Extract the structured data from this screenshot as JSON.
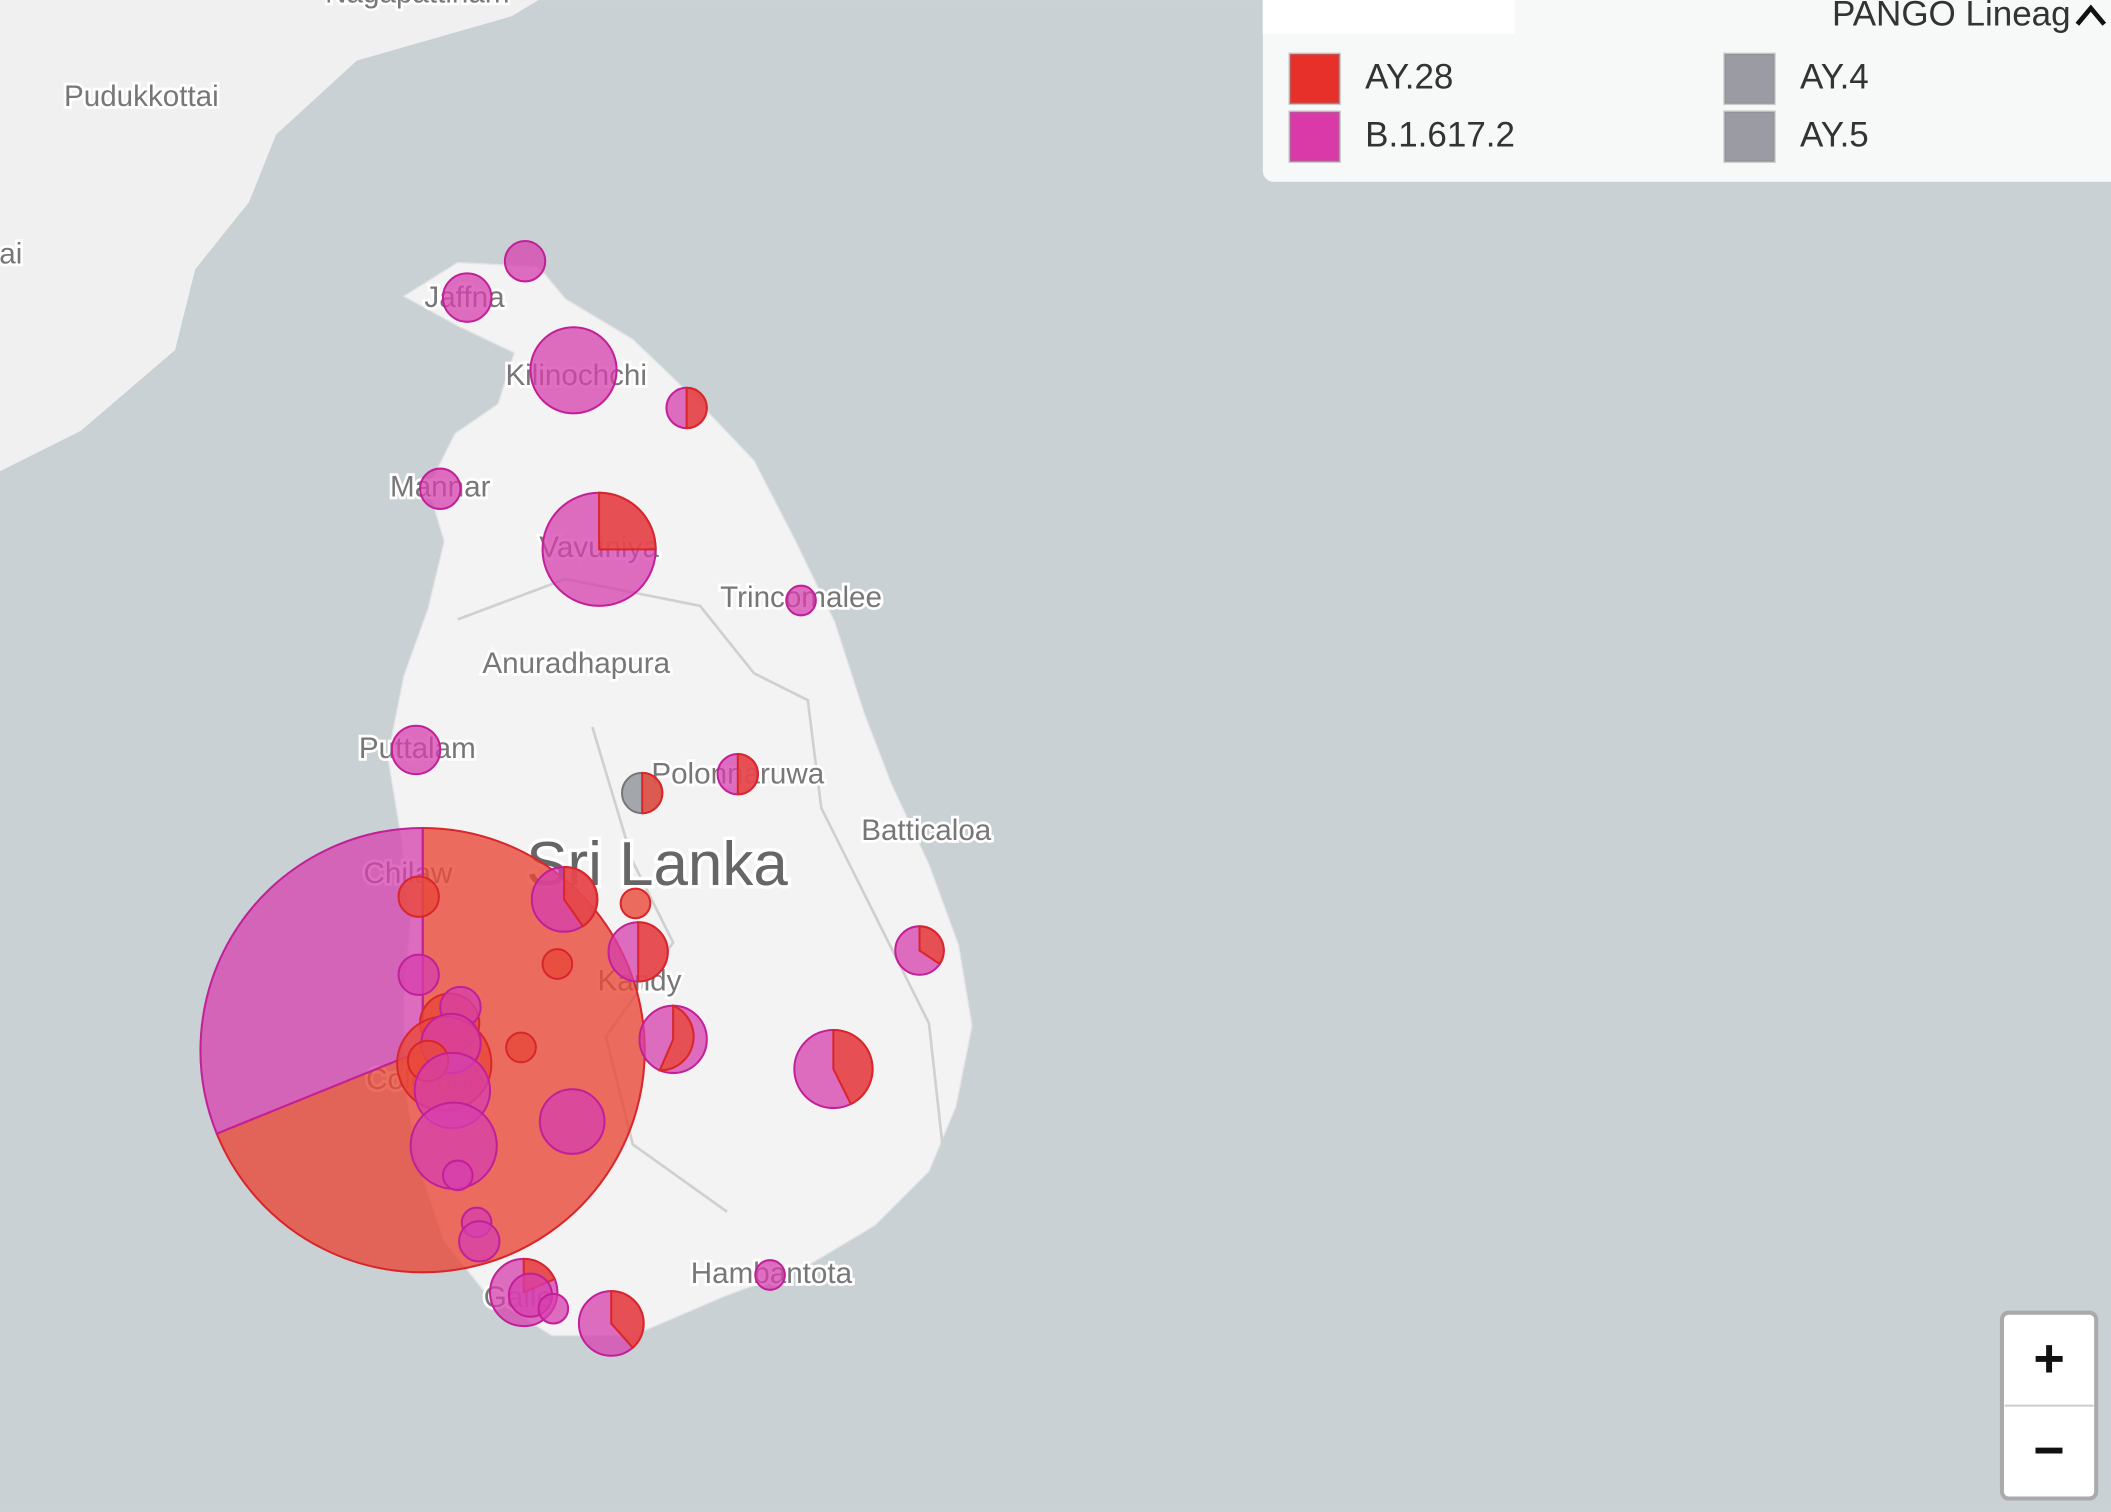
{
  "map": {
    "labels": [
      "Nagapattinam",
      "Pudukkottai",
      "ai",
      "Jaffna",
      "Kilinochchi",
      "Mannar",
      "Vavuniya",
      "Trincomalee",
      "Anuradhapura",
      "Puttalam",
      "Polonnaruwa",
      "Batticaloa",
      "Sri Lanka",
      "Chilaw",
      "Kandy",
      "Colombo",
      "Hambantota",
      "Galle"
    ]
  },
  "legend": {
    "title": "PANGO Lineag",
    "items": [
      {
        "label": "AY.28",
        "color": "#e8302a"
      },
      {
        "label": "B.1.617.2",
        "color": "#d93aa8"
      },
      {
        "label": "AY.4",
        "color": "#9a9ba3"
      },
      {
        "label": "AY.5",
        "color": "#9a9ba3"
      }
    ]
  },
  "zoom": {
    "in": "+",
    "out": "−"
  }
}
